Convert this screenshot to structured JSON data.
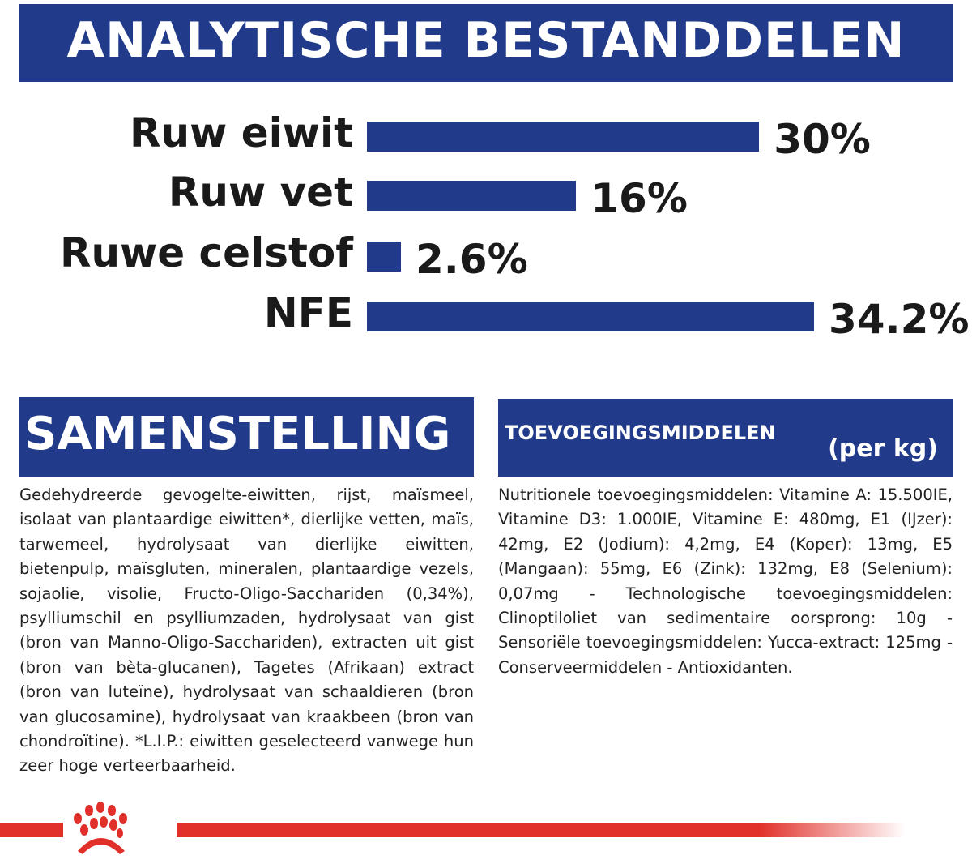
{
  "header": {
    "title": "ANALYTISCHE BESTANDDELEN"
  },
  "chart_data": {
    "type": "bar",
    "orientation": "horizontal",
    "categories": [
      "Ruw eiwit",
      "Ruw vet",
      "Ruwe celstof",
      "NFE"
    ],
    "values": [
      30,
      16,
      2.6,
      34.2
    ],
    "value_labels": [
      "30%",
      "16%",
      "2.6%",
      "34.2%"
    ],
    "bar_color": "#213b8a",
    "xlim": [
      0,
      34.2
    ]
  },
  "samenstelling": {
    "title": "SAMENSTELLING",
    "text": "Gedehydreerde gevogelte-eiwitten, rijst, maïsmeel, isolaat van plantaardige eiwitten*, dierlijke vetten, maïs, tarwemeel, hydrolysaat van dierlijke eiwitten, bietenpulp, maïsgluten, mineralen, plantaardige vezels, sojaolie, visolie, Fructo-Oligo-Sacchariden (0,34%), psylliumschil en psylliumzaden, hydrolysaat van gist (bron van Manno-Oligo-Sacchariden), extracten uit gist (bron van bèta-glucanen), Tagetes (Afrikaan) extract (bron van luteïne), hydrolysaat van schaaldieren (bron van glucosamine), hydrolysaat van kraakbeen (bron van chondroïtine). *L.I.P.: eiwitten geselecteerd vanwege hun zeer hoge verteerbaarheid."
  },
  "toevoegingsmiddelen": {
    "title": "TOEVOEGINGSMIDDELEN",
    "unit": "(per kg)",
    "text": "Nutritionele toevoegingsmiddelen: Vitamine A: 15.500IE, Vitamine D3: 1.000IE, Vitamine E: 480mg, E1 (IJzer): 42mg, E2 (Jodium): 4,2mg, E4 (Koper): 13mg, E5 (Mangaan): 55mg, E6 (Zink): 132mg, E8 (Selenium): 0,07mg - Technologische toevoegingsmiddelen: Clinoptiloliet van sedimentaire oorsprong: 10g - Sensoriële toevoegingsmiddelen: Yucca-extract: 125mg - Conserveermiddelen - Antioxidanten."
  },
  "colors": {
    "brand_blue": "#213b8a",
    "brand_red": "#e1302a"
  }
}
